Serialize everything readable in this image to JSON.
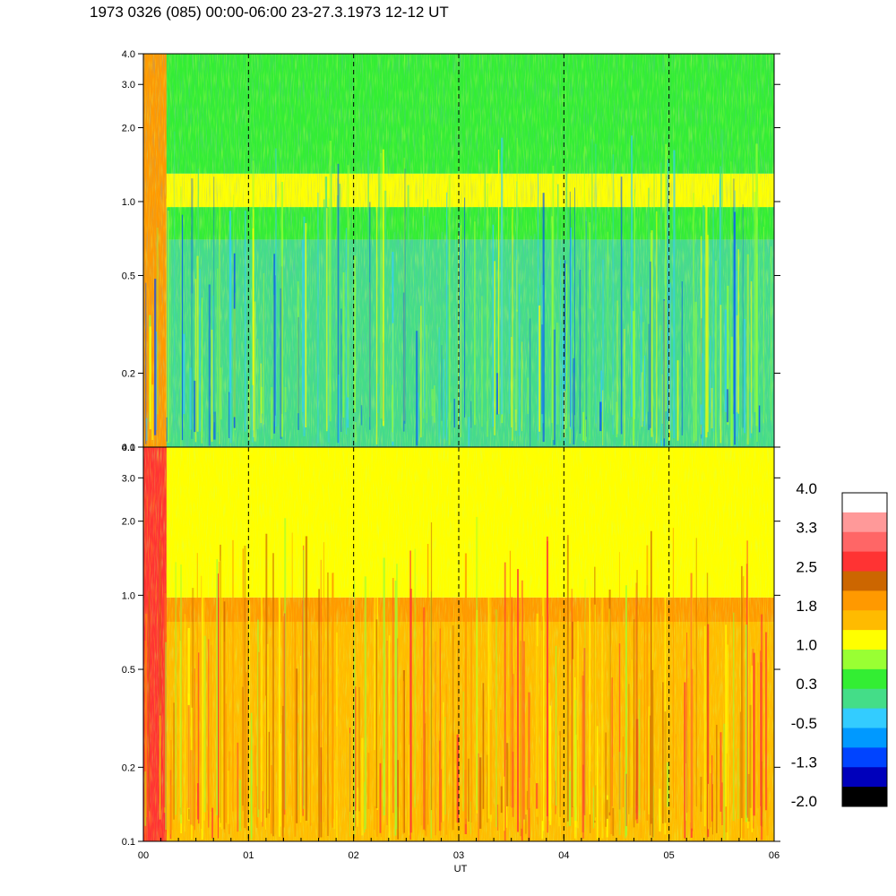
{
  "title": "1973 0326 (085) 00:00-06:00 23-27.3.1973  12-12 UT",
  "chart_data": [
    {
      "type": "heatmap",
      "panel": "top",
      "xlabel": "",
      "x_range": [
        0,
        6
      ],
      "y_scale": "log",
      "ylim": [
        0.1,
        4.0
      ],
      "y_ticks": [
        {
          "value": 4.0,
          "label": "4.0"
        },
        {
          "value": 3.0,
          "label": "3.0"
        },
        {
          "value": 2.0,
          "label": "2.0"
        },
        {
          "value": 1.0,
          "label": "1.0"
        },
        {
          "value": 0.5,
          "label": "0.5"
        },
        {
          "value": 0.2,
          "label": "0.2"
        },
        {
          "value": 0.1,
          "label": "0.1"
        }
      ],
      "hour_markers": [
        1,
        2,
        3,
        4,
        5
      ],
      "bands": [
        {
          "y_from": 0.1,
          "y_to": 0.7,
          "level": 0.0
        },
        {
          "y_from": 0.7,
          "y_to": 0.95,
          "level": 0.6
        },
        {
          "y_from": 0.95,
          "y_to": 1.3,
          "level": 1.0
        },
        {
          "y_from": 1.3,
          "y_to": 4.0,
          "level": 0.6
        }
      ],
      "early_segment": {
        "x_from": 0.0,
        "x_to": 0.22,
        "level": 1.8
      }
    },
    {
      "type": "heatmap",
      "panel": "bottom",
      "xlabel": "UT",
      "x_range": [
        0,
        6
      ],
      "x_ticks": [
        "00",
        "01",
        "02",
        "03",
        "04",
        "05",
        "06"
      ],
      "y_scale": "log",
      "ylim": [
        0.1,
        4.0
      ],
      "y_ticks": [
        {
          "value": 4.0,
          "label": "4.0"
        },
        {
          "value": 3.0,
          "label": "3.0"
        },
        {
          "value": 2.0,
          "label": "2.0"
        },
        {
          "value": 1.0,
          "label": "1.0"
        },
        {
          "value": 0.5,
          "label": "0.5"
        },
        {
          "value": 0.2,
          "label": "0.2"
        },
        {
          "value": 0.1,
          "label": "0.1"
        }
      ],
      "hour_markers": [
        1,
        2,
        3,
        4,
        5
      ],
      "bands": [
        {
          "y_from": 0.1,
          "y_to": 0.78,
          "level": 1.5
        },
        {
          "y_from": 0.78,
          "y_to": 0.98,
          "level": 2.1
        },
        {
          "y_from": 0.98,
          "y_to": 4.0,
          "level": 1.1
        }
      ],
      "early_segment": {
        "x_from": 0.0,
        "x_to": 0.22,
        "level": 2.6
      }
    }
  ],
  "colorbar": {
    "labels": [
      "4.0",
      "3.3",
      "2.5",
      "1.8",
      "1.0",
      "0.3",
      "-0.5",
      "-1.3",
      "-2.0"
    ],
    "colors": [
      "#ffffff",
      "#ff9999",
      "#ff6666",
      "#ff3333",
      "#cc6600",
      "#ff9900",
      "#ffbb00",
      "#ffff00",
      "#99ff33",
      "#33ee33",
      "#44dd88",
      "#33ccff",
      "#0099ff",
      "#0044ff",
      "#0000bb",
      "#000000"
    ]
  }
}
